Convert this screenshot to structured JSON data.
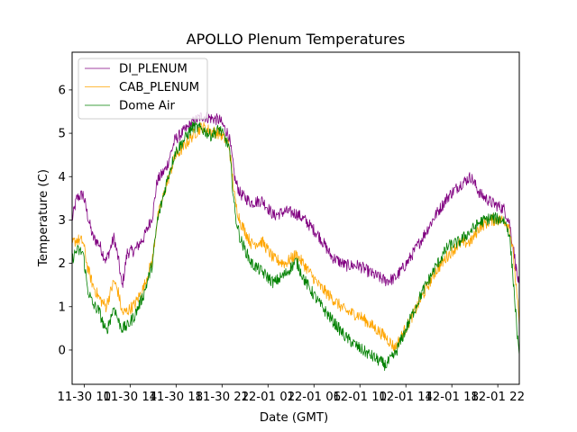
{
  "chart_data": {
    "type": "line",
    "title": "APOLLO Plenum Temperatures",
    "xlabel": "Date (GMT)",
    "ylabel": "Temperature (C)",
    "x_units": "hours since 11-30 00:00 GMT",
    "xlim": [
      8.95,
      47.87
    ],
    "ylim": [
      -0.79,
      6.87
    ],
    "yticks": [
      0,
      1,
      2,
      3,
      4,
      5,
      6
    ],
    "xticks": [
      {
        "value": 10,
        "label": "11-30 10"
      },
      {
        "value": 14,
        "label": "11-30 14"
      },
      {
        "value": 18,
        "label": "11-30 18"
      },
      {
        "value": 22,
        "label": "11-30 22"
      },
      {
        "value": 26,
        "label": "12-01 02"
      },
      {
        "value": 30,
        "label": "12-01 06"
      },
      {
        "value": 34,
        "label": "12-01 10"
      },
      {
        "value": 38,
        "label": "12-01 14"
      },
      {
        "value": 42,
        "label": "12-01 18"
      },
      {
        "value": 46,
        "label": "12-01 22"
      }
    ],
    "grid": false,
    "legend_position": "top-left",
    "series": [
      {
        "name": "DI_PLENUM",
        "color": "#800080",
        "x": [
          8.95,
          9.35,
          9.9,
          10.3,
          10.75,
          11.3,
          11.9,
          12.6,
          13.0,
          13.3,
          13.75,
          14.4,
          15.2,
          15.95,
          16.35,
          17.15,
          17.9,
          18.7,
          19.45,
          20.25,
          21.0,
          21.8,
          22.6,
          23.15,
          23.6,
          24.55,
          25.5,
          26.5,
          27.5,
          28.45,
          29.2,
          30.4,
          31.55,
          32.75,
          33.9,
          35.1,
          36.25,
          37.05,
          38.2,
          39.35,
          40.55,
          41.7,
          42.65,
          43.65,
          44.45,
          45.45,
          46.55,
          47.0,
          47.35,
          47.87
        ],
        "values": [
          3.0,
          3.5,
          3.6,
          3.1,
          2.6,
          2.45,
          2.05,
          2.6,
          2.05,
          1.45,
          2.25,
          2.3,
          2.6,
          3.1,
          3.9,
          4.2,
          4.85,
          5.05,
          5.25,
          5.4,
          5.35,
          5.3,
          4.95,
          3.9,
          3.6,
          3.4,
          3.45,
          3.1,
          3.2,
          3.15,
          3.0,
          2.65,
          2.15,
          1.95,
          1.95,
          1.75,
          1.6,
          1.65,
          2.05,
          2.55,
          3.1,
          3.55,
          3.8,
          4.0,
          3.6,
          3.4,
          3.25,
          2.95,
          2.35,
          1.4
        ]
      },
      {
        "name": "CAB_PLENUM",
        "color": "#ffa500",
        "x": [
          8.95,
          9.35,
          9.9,
          10.3,
          10.75,
          11.3,
          11.9,
          12.6,
          13.0,
          13.3,
          13.75,
          14.4,
          15.2,
          15.95,
          16.35,
          17.15,
          17.9,
          18.7,
          19.45,
          20.25,
          21.0,
          21.8,
          22.6,
          23.15,
          23.6,
          24.55,
          25.5,
          26.5,
          27.5,
          28.45,
          29.2,
          30.4,
          31.55,
          32.75,
          33.9,
          35.1,
          36.25,
          37.05,
          38.2,
          39.35,
          40.55,
          41.7,
          42.65,
          43.65,
          44.45,
          45.45,
          46.55,
          47.0,
          47.35,
          47.87
        ],
        "values": [
          2.45,
          2.55,
          2.5,
          1.9,
          1.5,
          1.2,
          1.0,
          1.6,
          1.3,
          0.85,
          0.9,
          1.05,
          1.45,
          2.1,
          3.0,
          3.8,
          4.45,
          4.7,
          4.95,
          5.15,
          5.05,
          5.0,
          4.75,
          3.4,
          2.95,
          2.45,
          2.5,
          2.1,
          2.0,
          2.2,
          1.95,
          1.5,
          1.2,
          0.9,
          0.8,
          0.55,
          0.3,
          0.05,
          0.6,
          1.2,
          1.8,
          2.2,
          2.45,
          2.5,
          2.85,
          3.0,
          3.0,
          2.85,
          2.2,
          0.6
        ]
      },
      {
        "name": "Dome Air",
        "color": "#008000",
        "x": [
          8.95,
          9.35,
          9.9,
          10.3,
          10.75,
          11.3,
          11.9,
          12.6,
          13.0,
          13.3,
          13.75,
          14.4,
          15.2,
          15.95,
          16.35,
          17.15,
          17.9,
          18.7,
          19.45,
          20.25,
          21.0,
          21.8,
          22.6,
          23.15,
          23.6,
          24.55,
          25.5,
          26.5,
          27.5,
          28.45,
          29.2,
          30.4,
          31.55,
          32.75,
          33.9,
          35.1,
          36.25,
          37.05,
          38.2,
          39.35,
          40.55,
          41.7,
          42.65,
          43.65,
          44.45,
          45.45,
          46.55,
          47.0,
          47.35,
          47.87
        ],
        "values": [
          2.1,
          2.3,
          2.25,
          1.4,
          1.05,
          0.9,
          0.4,
          1.0,
          0.65,
          0.5,
          0.55,
          0.8,
          1.3,
          2.0,
          2.95,
          3.85,
          4.55,
          4.85,
          5.15,
          5.1,
          4.95,
          5.1,
          4.7,
          3.1,
          2.55,
          2.0,
          1.8,
          1.55,
          1.75,
          2.05,
          1.6,
          1.1,
          0.7,
          0.3,
          0.05,
          -0.15,
          -0.35,
          -0.1,
          0.6,
          1.3,
          1.9,
          2.4,
          2.5,
          2.75,
          2.95,
          3.05,
          3.0,
          2.7,
          1.6,
          -0.25
        ]
      }
    ]
  }
}
